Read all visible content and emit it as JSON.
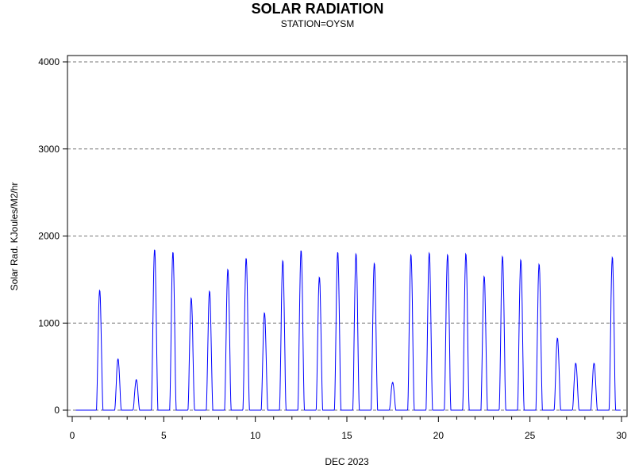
{
  "chart_data": {
    "type": "line",
    "title": "SOLAR RADIATION",
    "subtitle": "STATION=OYSM",
    "xlabel": "DEC 2023",
    "ylabel": "Solar Rad. KJoules/M2/hr",
    "xlim": [
      0,
      30
    ],
    "ylim": [
      0,
      4000
    ],
    "xticks": [
      0,
      5,
      10,
      15,
      20,
      25,
      30
    ],
    "yticks": [
      0,
      1000,
      2000,
      3000,
      4000
    ],
    "grid": "horizontal dashed",
    "line_color": "#0000ff",
    "day_peaks": [
      {
        "day": 1,
        "peak": 1380
      },
      {
        "day": 2,
        "peak": 590
      },
      {
        "day": 3,
        "peak": 350
      },
      {
        "day": 4,
        "peak": 1850
      },
      {
        "day": 5,
        "peak": 1820
      },
      {
        "day": 6,
        "peak": 1290
      },
      {
        "day": 7,
        "peak": 1370
      },
      {
        "day": 8,
        "peak": 1620
      },
      {
        "day": 9,
        "peak": 1750
      },
      {
        "day": 10,
        "peak": 1120
      },
      {
        "day": 11,
        "peak": 1720
      },
      {
        "day": 12,
        "peak": 1840
      },
      {
        "day": 13,
        "peak": 1530
      },
      {
        "day": 14,
        "peak": 1820
      },
      {
        "day": 15,
        "peak": 1800
      },
      {
        "day": 16,
        "peak": 1690
      },
      {
        "day": 17,
        "peak": 320
      },
      {
        "day": 18,
        "peak": 1790
      },
      {
        "day": 19,
        "peak": 1810
      },
      {
        "day": 20,
        "peak": 1790
      },
      {
        "day": 21,
        "peak": 1800
      },
      {
        "day": 22,
        "peak": 1540
      },
      {
        "day": 23,
        "peak": 1770
      },
      {
        "day": 24,
        "peak": 1730
      },
      {
        "day": 25,
        "peak": 1680
      },
      {
        "day": 26,
        "peak": 830
      },
      {
        "day": 27,
        "peak": 540
      },
      {
        "day": 28,
        "peak": 540
      },
      {
        "day": 29,
        "peak": 1760
      }
    ]
  }
}
